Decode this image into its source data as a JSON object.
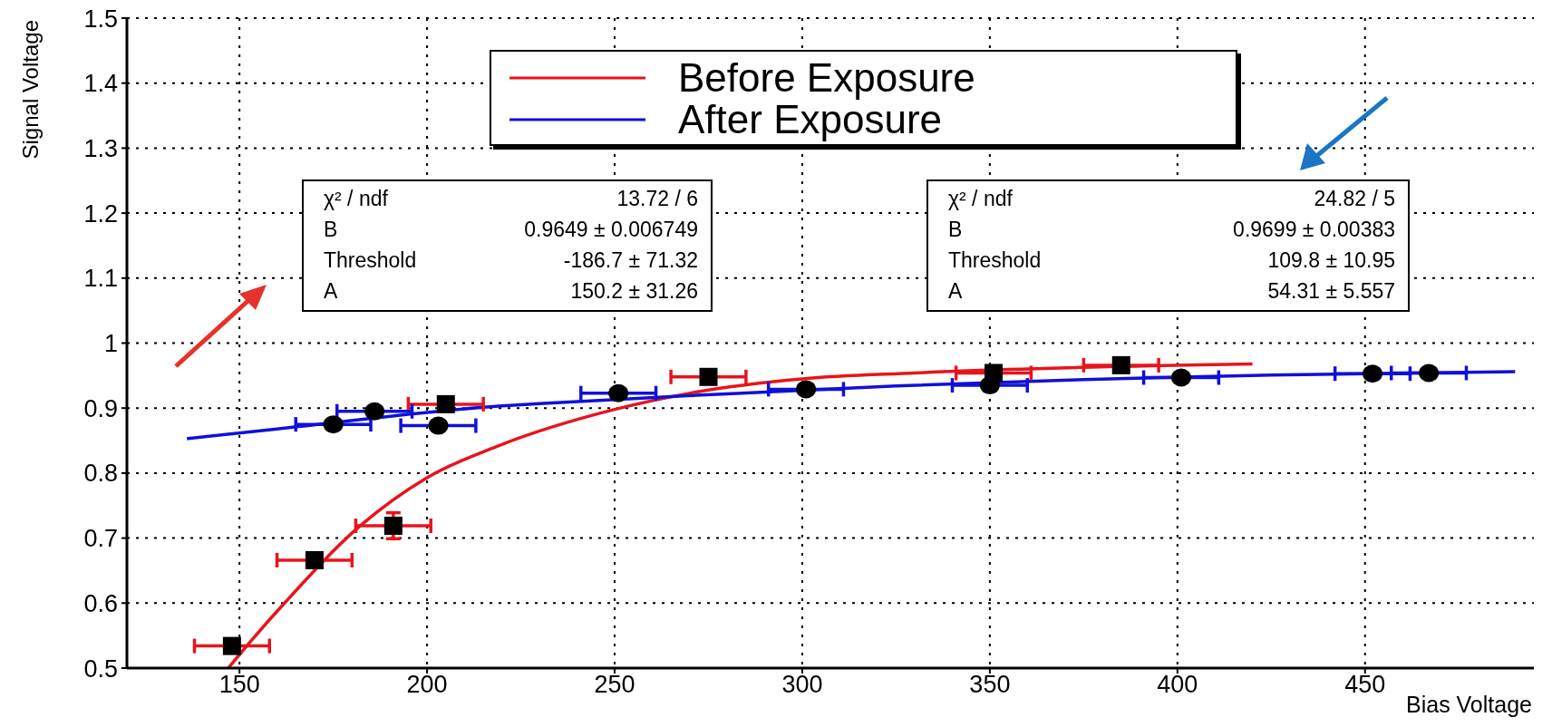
{
  "chart_data": {
    "type": "scatter",
    "xlabel": "Bias Voltage",
    "ylabel": "Signal Voltage",
    "xlim": [
      120,
      495
    ],
    "xticks": [
      150,
      200,
      250,
      300,
      350,
      400,
      450
    ],
    "ylim": [
      0.5,
      1.5
    ],
    "yticks": [
      0.5,
      0.6,
      0.7,
      0.8,
      0.9,
      1,
      1.1,
      1.2,
      1.3,
      1.4,
      1.5
    ],
    "grid": true,
    "legend": "top",
    "series": [
      {
        "name": "Before Exposure",
        "type": "line",
        "color": "#e8141c",
        "marker": "none",
        "x": [
          147,
          154,
          162,
          182,
          200,
          219,
          250,
          271,
          300,
          330,
          420
        ],
        "values": [
          0.5,
          0.548,
          0.6,
          0.718,
          0.793,
          0.842,
          0.898,
          0.924,
          0.945,
          0.954,
          0.968
        ]
      },
      {
        "name": "After Exposure",
        "type": "line",
        "color": "#1010d8",
        "marker": "none",
        "x": [
          136,
          160,
          219,
          230,
          280,
          325,
          375,
          425,
          490
        ],
        "values": [
          0.853,
          0.868,
          0.903,
          0.907,
          0.922,
          0.934,
          0.944,
          0.951,
          0.956
        ]
      },
      {
        "color": "#000000",
        "marker": "square",
        "x": [
          148,
          170,
          191,
          205,
          275,
          351,
          385
        ],
        "values": [
          0.534,
          0.666,
          0.719,
          0.906,
          0.948,
          0.954,
          0.966
        ],
        "xerrors": [
          10,
          10,
          10,
          10,
          10,
          10,
          10
        ],
        "errors": [
          null,
          null,
          0.02,
          null,
          null,
          null,
          null
        ]
      },
      {
        "color": "#000000",
        "marker": "circle",
        "x": [
          175,
          186,
          203,
          251,
          301,
          350,
          401,
          452,
          467
        ],
        "values": [
          0.875,
          0.895,
          0.873,
          0.923,
          0.929,
          0.935,
          0.947,
          0.953,
          0.954
        ],
        "xerrors": [
          10,
          10,
          10,
          10,
          10,
          10,
          10,
          10,
          10
        ]
      }
    ],
    "annotations": [
      "χ² / ndf\t13.72 / 6",
      "B\t0.9649 ± 0.006749",
      "Threshold\t-186.7 ± 71.32",
      "A\t150.2 ± 31.26",
      "χ² / ndf\t24.82 / 5",
      "B\t0.9699 ± 0.00383",
      "Threshold\t109.8 ± 10.95",
      "A\t54.31 ± 5.557"
    ]
  }
}
